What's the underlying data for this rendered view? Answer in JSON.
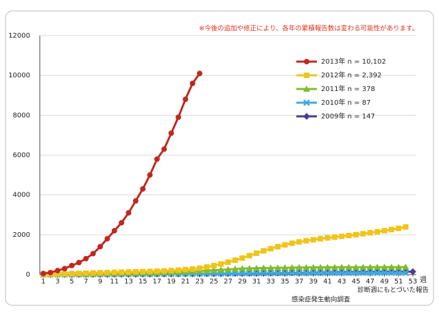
{
  "chart_data": {
    "type": "line",
    "note": "※今後の追加や修正により、各年の累積報告数は変わる可能性があります。",
    "x_label": "週",
    "source": [
      "診断週にもとづいた報告",
      "感染症発生動向調査"
    ],
    "x": [
      1,
      2,
      3,
      4,
      5,
      6,
      7,
      8,
      9,
      10,
      11,
      12,
      13,
      14,
      15,
      16,
      17,
      18,
      19,
      20,
      21,
      22,
      23,
      24,
      25,
      26,
      27,
      28,
      29,
      30,
      31,
      32,
      33,
      34,
      35,
      36,
      37,
      38,
      39,
      40,
      41,
      42,
      43,
      44,
      45,
      46,
      47,
      48,
      49,
      50,
      51,
      52,
      53
    ],
    "xlim": [
      0.5,
      53.5
    ],
    "xticks": [
      1,
      3,
      5,
      7,
      9,
      11,
      13,
      15,
      17,
      19,
      21,
      23,
      25,
      27,
      29,
      31,
      33,
      35,
      37,
      39,
      41,
      43,
      45,
      47,
      49,
      51,
      53
    ],
    "ylim": [
      0,
      12000
    ],
    "yticks": [
      0,
      2000,
      4000,
      6000,
      8000,
      10000,
      12000
    ],
    "grid": true,
    "legend": "upper right",
    "series": [
      {
        "name": "2013年 n = 10,102",
        "color": "#c0281e",
        "marker": "circle",
        "values": [
          50,
          100,
          200,
          300,
          450,
          600,
          800,
          1050,
          1400,
          1800,
          2200,
          2600,
          3100,
          3700,
          4300,
          5000,
          5800,
          6300,
          7100,
          7900,
          8800,
          9600,
          10100,
          null,
          null,
          null,
          null,
          null,
          null,
          null,
          null,
          null,
          null,
          null,
          null,
          null,
          null,
          null,
          null,
          null,
          null,
          null,
          null,
          null,
          null,
          null,
          null,
          null,
          null,
          null,
          null,
          null,
          null
        ]
      },
      {
        "name": "2012年 n = 2,392",
        "color": "#f0c419",
        "marker": "square",
        "values": [
          10,
          20,
          30,
          40,
          50,
          60,
          70,
          80,
          90,
          100,
          110,
          120,
          130,
          140,
          150,
          160,
          170,
          180,
          200,
          220,
          250,
          280,
          320,
          380,
          450,
          530,
          620,
          720,
          830,
          950,
          1070,
          1190,
          1300,
          1400,
          1490,
          1570,
          1640,
          1700,
          1750,
          1800,
          1840,
          1880,
          1920,
          1960,
          2000,
          2050,
          2100,
          2150,
          2200,
          2260,
          2320,
          2392,
          null
        ]
      },
      {
        "name": "2011年 n = 378",
        "color": "#80bc2c",
        "marker": "triangle",
        "values": [
          5,
          10,
          15,
          20,
          25,
          30,
          35,
          40,
          45,
          50,
          55,
          60,
          65,
          70,
          75,
          80,
          90,
          100,
          110,
          120,
          140,
          160,
          180,
          200,
          220,
          240,
          260,
          280,
          300,
          310,
          320,
          330,
          335,
          340,
          345,
          350,
          355,
          358,
          360,
          362,
          364,
          366,
          368,
          369,
          370,
          371,
          372,
          373,
          374,
          375,
          376,
          378,
          null
        ]
      },
      {
        "name": "2010年 n = 87",
        "color": "#3fa9e0",
        "marker": "x",
        "values": [
          2,
          4,
          6,
          8,
          10,
          12,
          14,
          16,
          18,
          20,
          22,
          24,
          26,
          28,
          30,
          32,
          34,
          36,
          38,
          40,
          42,
          44,
          46,
          48,
          50,
          52,
          54,
          56,
          58,
          60,
          62,
          64,
          66,
          68,
          70,
          72,
          74,
          75,
          76,
          77,
          78,
          79,
          80,
          81,
          82,
          83,
          84,
          84,
          85,
          85,
          86,
          87,
          null
        ]
      },
      {
        "name": "2009年 n = 147",
        "color": "#4b3f8c",
        "marker": "diamond",
        "values": [
          1,
          2,
          3,
          4,
          5,
          6,
          7,
          8,
          9,
          10,
          12,
          14,
          16,
          18,
          20,
          22,
          24,
          26,
          28,
          30,
          33,
          36,
          39,
          42,
          45,
          48,
          51,
          54,
          57,
          60,
          64,
          68,
          72,
          76,
          80,
          84,
          88,
          92,
          96,
          100,
          104,
          108,
          112,
          116,
          120,
          124,
          128,
          132,
          136,
          139,
          142,
          145,
          147
        ]
      }
    ]
  }
}
